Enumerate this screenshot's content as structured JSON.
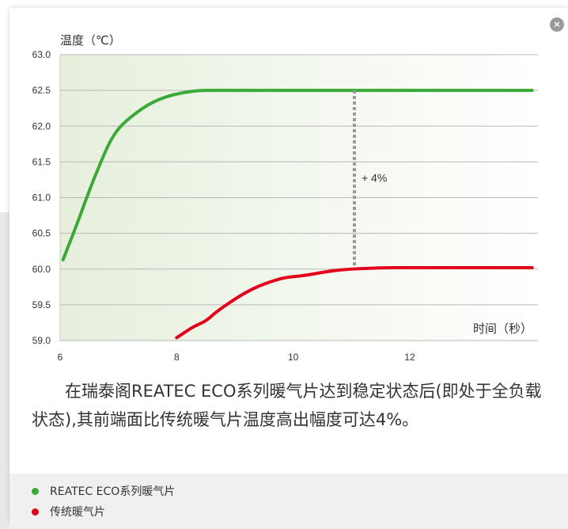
{
  "close_label": "×",
  "caption": "在瑞泰阁REATEC ECO系列暖气片达到稳定状态后(即处于全负载状态),其前端面比传统暖气片温度高出幅度可达4%。",
  "legend": [
    {
      "label": "REATEC ECO系列暖气片",
      "color": "#3aa935"
    },
    {
      "label": "传统暖气片",
      "color": "#e2001a"
    }
  ],
  "chart_data": {
    "type": "line",
    "ylabel": "温度（℃）",
    "xlabel": "时间（秒）",
    "xlim": [
      6,
      14.2
    ],
    "ylim": [
      59.0,
      63.0
    ],
    "xticks": [
      6,
      8,
      10,
      12
    ],
    "xtick_labels": [
      "6",
      "8",
      "10",
      "12"
    ],
    "yticks": [
      59.0,
      59.5,
      60.0,
      60.5,
      61.0,
      61.5,
      62.0,
      62.5,
      63.0
    ],
    "ytick_labels": [
      "59.0",
      "59.5",
      "60.0",
      "60.5",
      "61.0",
      "61.5",
      "62.0",
      "62.5",
      "63.0"
    ],
    "grid": true,
    "series": [
      {
        "name": "REATEC ECO系列暖气片",
        "color": "#3aa935",
        "x": [
          6.05,
          6.3,
          6.5,
          6.7,
          6.85,
          7.0,
          7.2,
          7.5,
          7.8,
          8.1,
          8.4,
          8.6,
          9.0,
          10.0,
          11.0,
          12.0,
          13.0,
          14.1
        ],
        "y": [
          60.13,
          60.65,
          61.1,
          61.5,
          61.78,
          61.97,
          62.12,
          62.3,
          62.41,
          62.47,
          62.5,
          62.5,
          62.5,
          62.5,
          62.5,
          62.5,
          62.5,
          62.5
        ]
      },
      {
        "name": "传统暖气片",
        "color": "#e2001a",
        "x": [
          8.0,
          8.15,
          8.3,
          8.5,
          8.65,
          8.8,
          9.0,
          9.2,
          9.4,
          9.6,
          9.8,
          9.95,
          10.2,
          10.4,
          10.7,
          11.0,
          11.3,
          11.6,
          12.0,
          12.5,
          13.0,
          14.1
        ],
        "y": [
          59.04,
          59.12,
          59.2,
          59.27,
          59.38,
          59.47,
          59.58,
          59.68,
          59.76,
          59.82,
          59.87,
          59.89,
          59.91,
          59.94,
          59.98,
          60.0,
          60.01,
          60.02,
          60.02,
          60.02,
          60.02,
          60.02
        ]
      }
    ],
    "annotation": {
      "text": "+ 4%",
      "x": 11.05,
      "y_from": 60.05,
      "y_to": 62.5
    }
  }
}
